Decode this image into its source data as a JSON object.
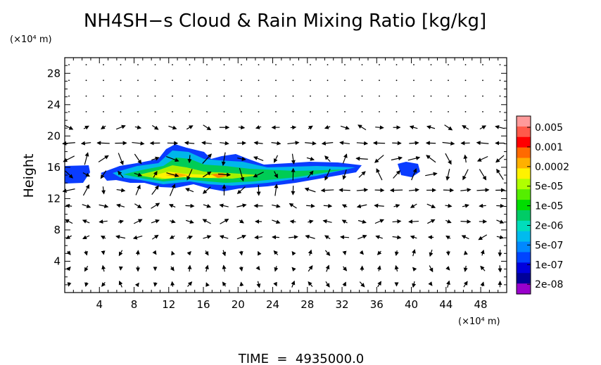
{
  "chart_data": {
    "type": "heatmap",
    "title": "NH4SH−s Cloud & Rain Mixing Ratio [kg/kg]",
    "ylabel": "Height",
    "x_unit": "(×10⁴ m)",
    "y_unit": "(×10⁴ m)",
    "xlim": [
      0,
      51
    ],
    "ylim": [
      0,
      30
    ],
    "x_ticks": [
      4,
      8,
      12,
      16,
      20,
      24,
      28,
      32,
      36,
      40,
      44,
      48
    ],
    "y_ticks": [
      4,
      8,
      12,
      16,
      20,
      24,
      28
    ],
    "grid": false,
    "vectors": "wind vector arrows overlaid",
    "colorbar": {
      "placement": "right",
      "labels": [
        "0.005",
        "0.001",
        "0.0002",
        "5e-05",
        "1e-05",
        "2e-06",
        "5e-07",
        "1e-07",
        "2e-08"
      ],
      "colors": [
        "#ff9a9a",
        "#ff5a4a",
        "#ff0000",
        "#ff6a00",
        "#ffb000",
        "#fff200",
        "#b0ff00",
        "#55ee00",
        "#00dd00",
        "#00cc66",
        "#00ddbb",
        "#00bbee",
        "#0088ff",
        "#0044ff",
        "#0000dd",
        "#000099",
        "#9900cc"
      ]
    },
    "time_label": "TIME  =  4935000.0"
  }
}
